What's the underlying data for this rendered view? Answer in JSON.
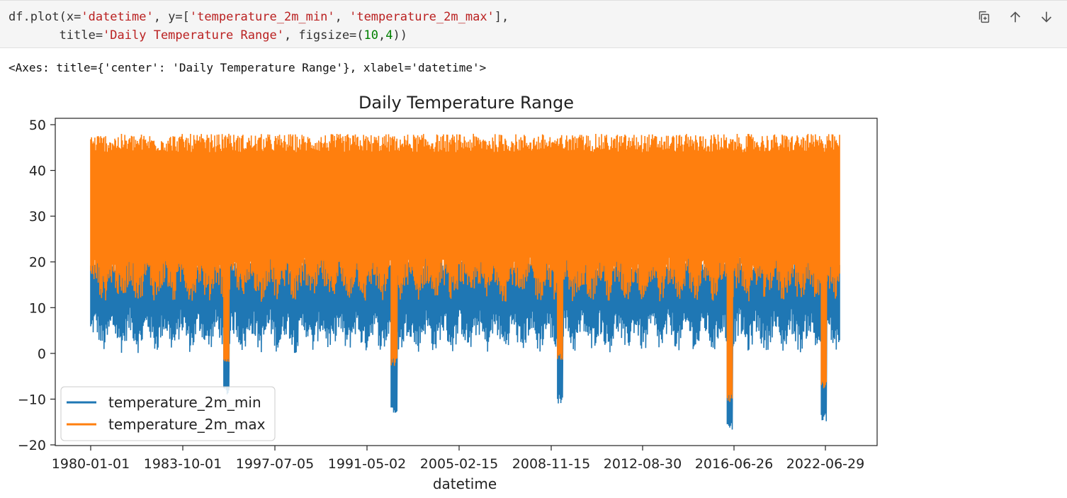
{
  "cell": {
    "code_line1": [
      "df.plot(x=",
      "'datetime'",
      ", y=[",
      "'temperature_2m_min'",
      ", ",
      "'temperature_2m_max'",
      "],"
    ],
    "code_line2": [
      "       title=",
      "'Daily Temperature Range'",
      ", figsize=(",
      "10",
      ",",
      "4",
      "))"
    ]
  },
  "toolbar": {
    "copy_icon": "copy-icon",
    "up_icon": "arrow-up-icon",
    "down_icon": "arrow-down-icon"
  },
  "output": {
    "repr": "<Axes: title={'center': 'Daily Temperature Range'}, xlabel='datetime'>"
  },
  "chart_data": {
    "type": "line",
    "title": "Daily Temperature Range",
    "xlabel": "datetime",
    "ylabel": "",
    "ylim": [
      -20,
      50
    ],
    "yticks": [
      -20,
      -10,
      0,
      10,
      20,
      30,
      40,
      50
    ],
    "xtick_labels": [
      "1980-01-01",
      "1983-10-01",
      "1997-07-05",
      "1991-05-02",
      "2005-02-15",
      "2008-11-15",
      "2012-08-30",
      "2016-06-26",
      "2022-06-29"
    ],
    "legend_location": "lower left",
    "series": [
      {
        "name": "temperature_2m_min",
        "color": "#1f77b4",
        "low_typical": 3,
        "high_typical": 20,
        "dips": [
          {
            "at": 0.181,
            "value": -9
          },
          {
            "at": 0.405,
            "value": -13
          },
          {
            "at": 0.627,
            "value": -11
          },
          {
            "at": 0.853,
            "value": -17
          },
          {
            "at": 0.979,
            "value": -15
          }
        ]
      },
      {
        "name": "temperature_2m_max",
        "color": "#ff7f0e",
        "low_typical": 14,
        "high_typical": 46,
        "dips": [
          {
            "at": 0.181,
            "value": -2
          },
          {
            "at": 0.405,
            "value": -3
          },
          {
            "at": 0.627,
            "value": -2
          },
          {
            "at": 0.853,
            "value": -11
          },
          {
            "at": 0.979,
            "value": -8
          }
        ]
      }
    ]
  }
}
